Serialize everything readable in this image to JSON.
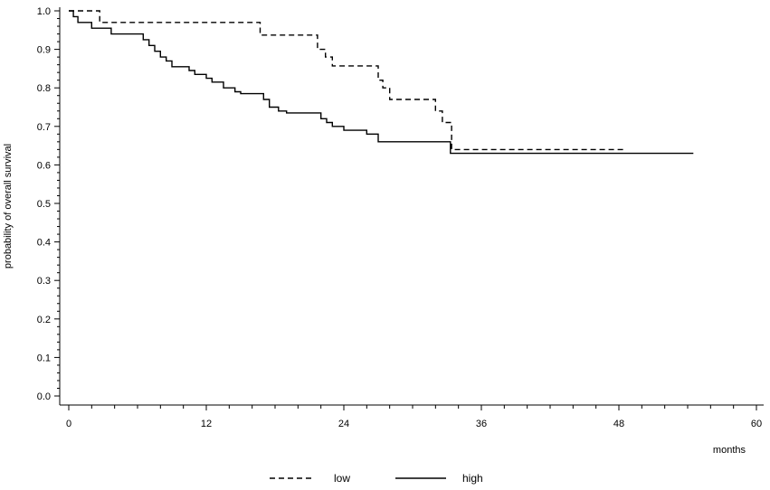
{
  "chart_data": {
    "type": "line",
    "subtype": "kaplan-meier step",
    "title": "",
    "xlabel": "months",
    "ylabel": "probability of overall survival",
    "xlim": [
      0,
      60
    ],
    "ylim": [
      0.0,
      1.0
    ],
    "x_ticks": [
      "0",
      "12",
      "24",
      "36",
      "48",
      "60"
    ],
    "y_ticks": [
      "0.0",
      "0.1",
      "0.2",
      "0.3",
      "0.4",
      "0.5",
      "0.6",
      "0.7",
      "0.8",
      "0.9",
      "1.0"
    ],
    "grid": false,
    "legend_position": "bottom",
    "series": [
      {
        "name": "low",
        "line_style": "dashed",
        "color": "#000000",
        "x": [
          0,
          2.7,
          16.7,
          21.7,
          22.4,
          23.0,
          27.0,
          27.4,
          28.0,
          32.0,
          32.6,
          33.4,
          48.5
        ],
        "y": [
          1.0,
          0.97,
          0.937,
          0.9,
          0.88,
          0.857,
          0.82,
          0.8,
          0.77,
          0.74,
          0.71,
          0.64,
          0.64
        ]
      },
      {
        "name": "high",
        "line_style": "solid",
        "color": "#000000",
        "x": [
          0,
          0.4,
          0.8,
          2.0,
          3.7,
          6.5,
          7.0,
          7.5,
          8.0,
          8.5,
          9.0,
          10.5,
          11.0,
          12.0,
          12.5,
          13.5,
          14.5,
          15.0,
          17.0,
          17.5,
          18.3,
          19.0,
          22.0,
          22.5,
          23.0,
          24.0,
          26.0,
          27.0,
          33.3,
          54.5
        ],
        "y": [
          1.0,
          0.985,
          0.97,
          0.955,
          0.94,
          0.925,
          0.91,
          0.895,
          0.88,
          0.87,
          0.855,
          0.845,
          0.835,
          0.825,
          0.815,
          0.8,
          0.79,
          0.785,
          0.77,
          0.75,
          0.74,
          0.735,
          0.72,
          0.71,
          0.7,
          0.69,
          0.68,
          0.66,
          0.63,
          0.63
        ]
      }
    ]
  }
}
